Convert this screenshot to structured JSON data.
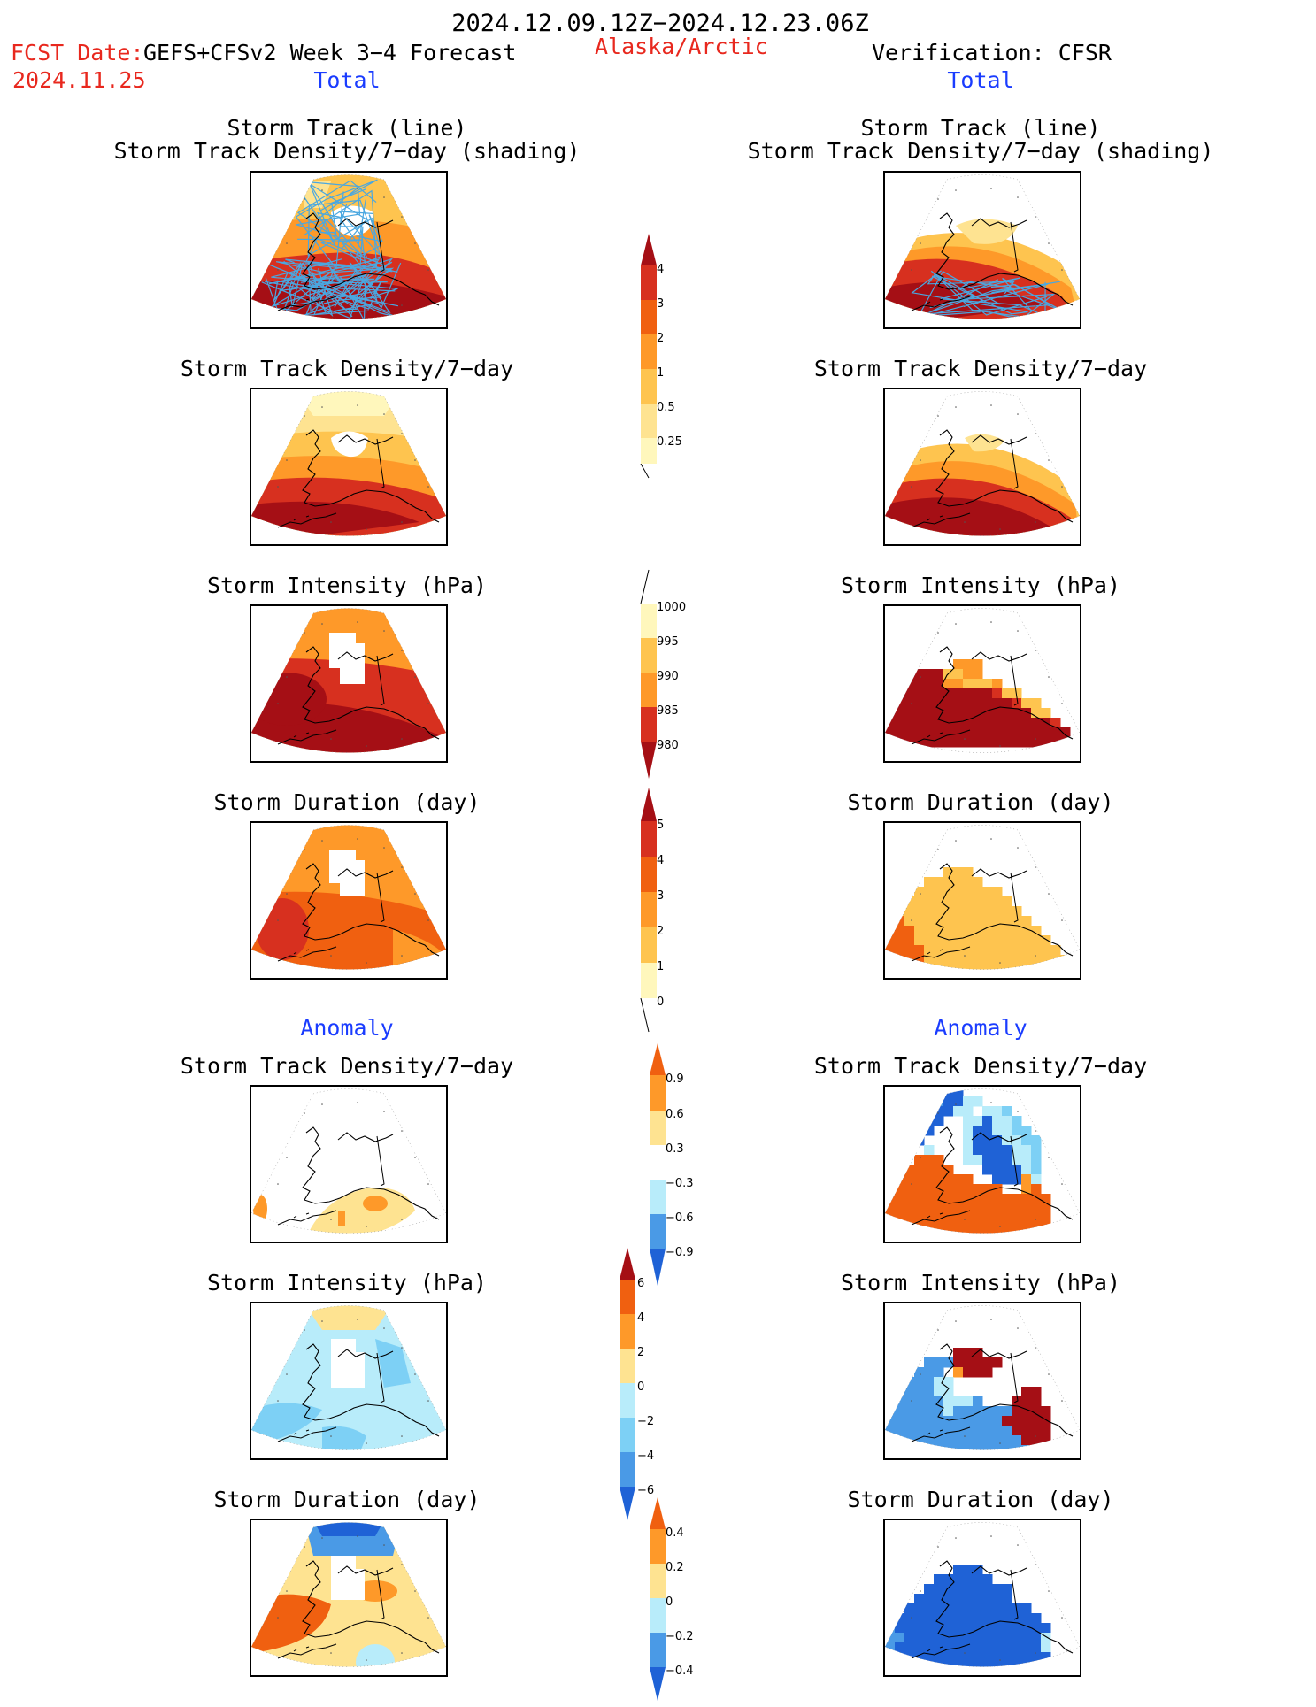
{
  "header": {
    "period": "2024.12.09.12Z−2024.12.23.06Z",
    "fcst_label": "FCST Date:",
    "fcst_model": "GEFS+CFSv2 Week 3−4 Forecast",
    "fcst_date": "2024.11.25",
    "region": "Alaska/Arctic",
    "verification": "Verification: CFSR",
    "left_total": "Total",
    "right_total": "Total",
    "left_anomaly": "Anomaly",
    "right_anomaly": "Anomaly"
  },
  "titles": {
    "storm_track_line": "Storm Track (line)",
    "storm_track_shading": "Storm Track Density/7−day (shading)",
    "density": "Storm Track Density/7−day",
    "intensity": "Storm Intensity (hPa)",
    "duration": "Storm Duration (day)"
  },
  "colorbars": {
    "density_total": [
      "4",
      "3",
      "2",
      "1",
      "0.5",
      "0.25"
    ],
    "intensity_total": [
      "1000",
      "995",
      "990",
      "985",
      "980"
    ],
    "duration_total": [
      "5",
      "4",
      "3",
      "2",
      "1",
      "0"
    ],
    "density_anom": [
      "0.9",
      "0.6",
      "0.3",
      "−0.3",
      "−0.6",
      "−0.9"
    ],
    "intensity_anom": [
      "6",
      "4",
      "2",
      "0",
      "−2",
      "−4",
      "−6"
    ],
    "duration_anom": [
      "0.4",
      "0.2",
      "0",
      "−0.2",
      "−0.4"
    ]
  },
  "colors": {
    "c1": "#fff7bc",
    "c2": "#fee391",
    "c3": "#fec44f",
    "c4": "#fe9929",
    "c5": "#f06010",
    "c6": "#d7301f",
    "c7": "#a50f15",
    "b1": "#b8ecfa",
    "b2": "#7dd0f5",
    "b3": "#4a9ae6",
    "b4": "#1f62d6",
    "track": "#4aa7e0"
  }
}
